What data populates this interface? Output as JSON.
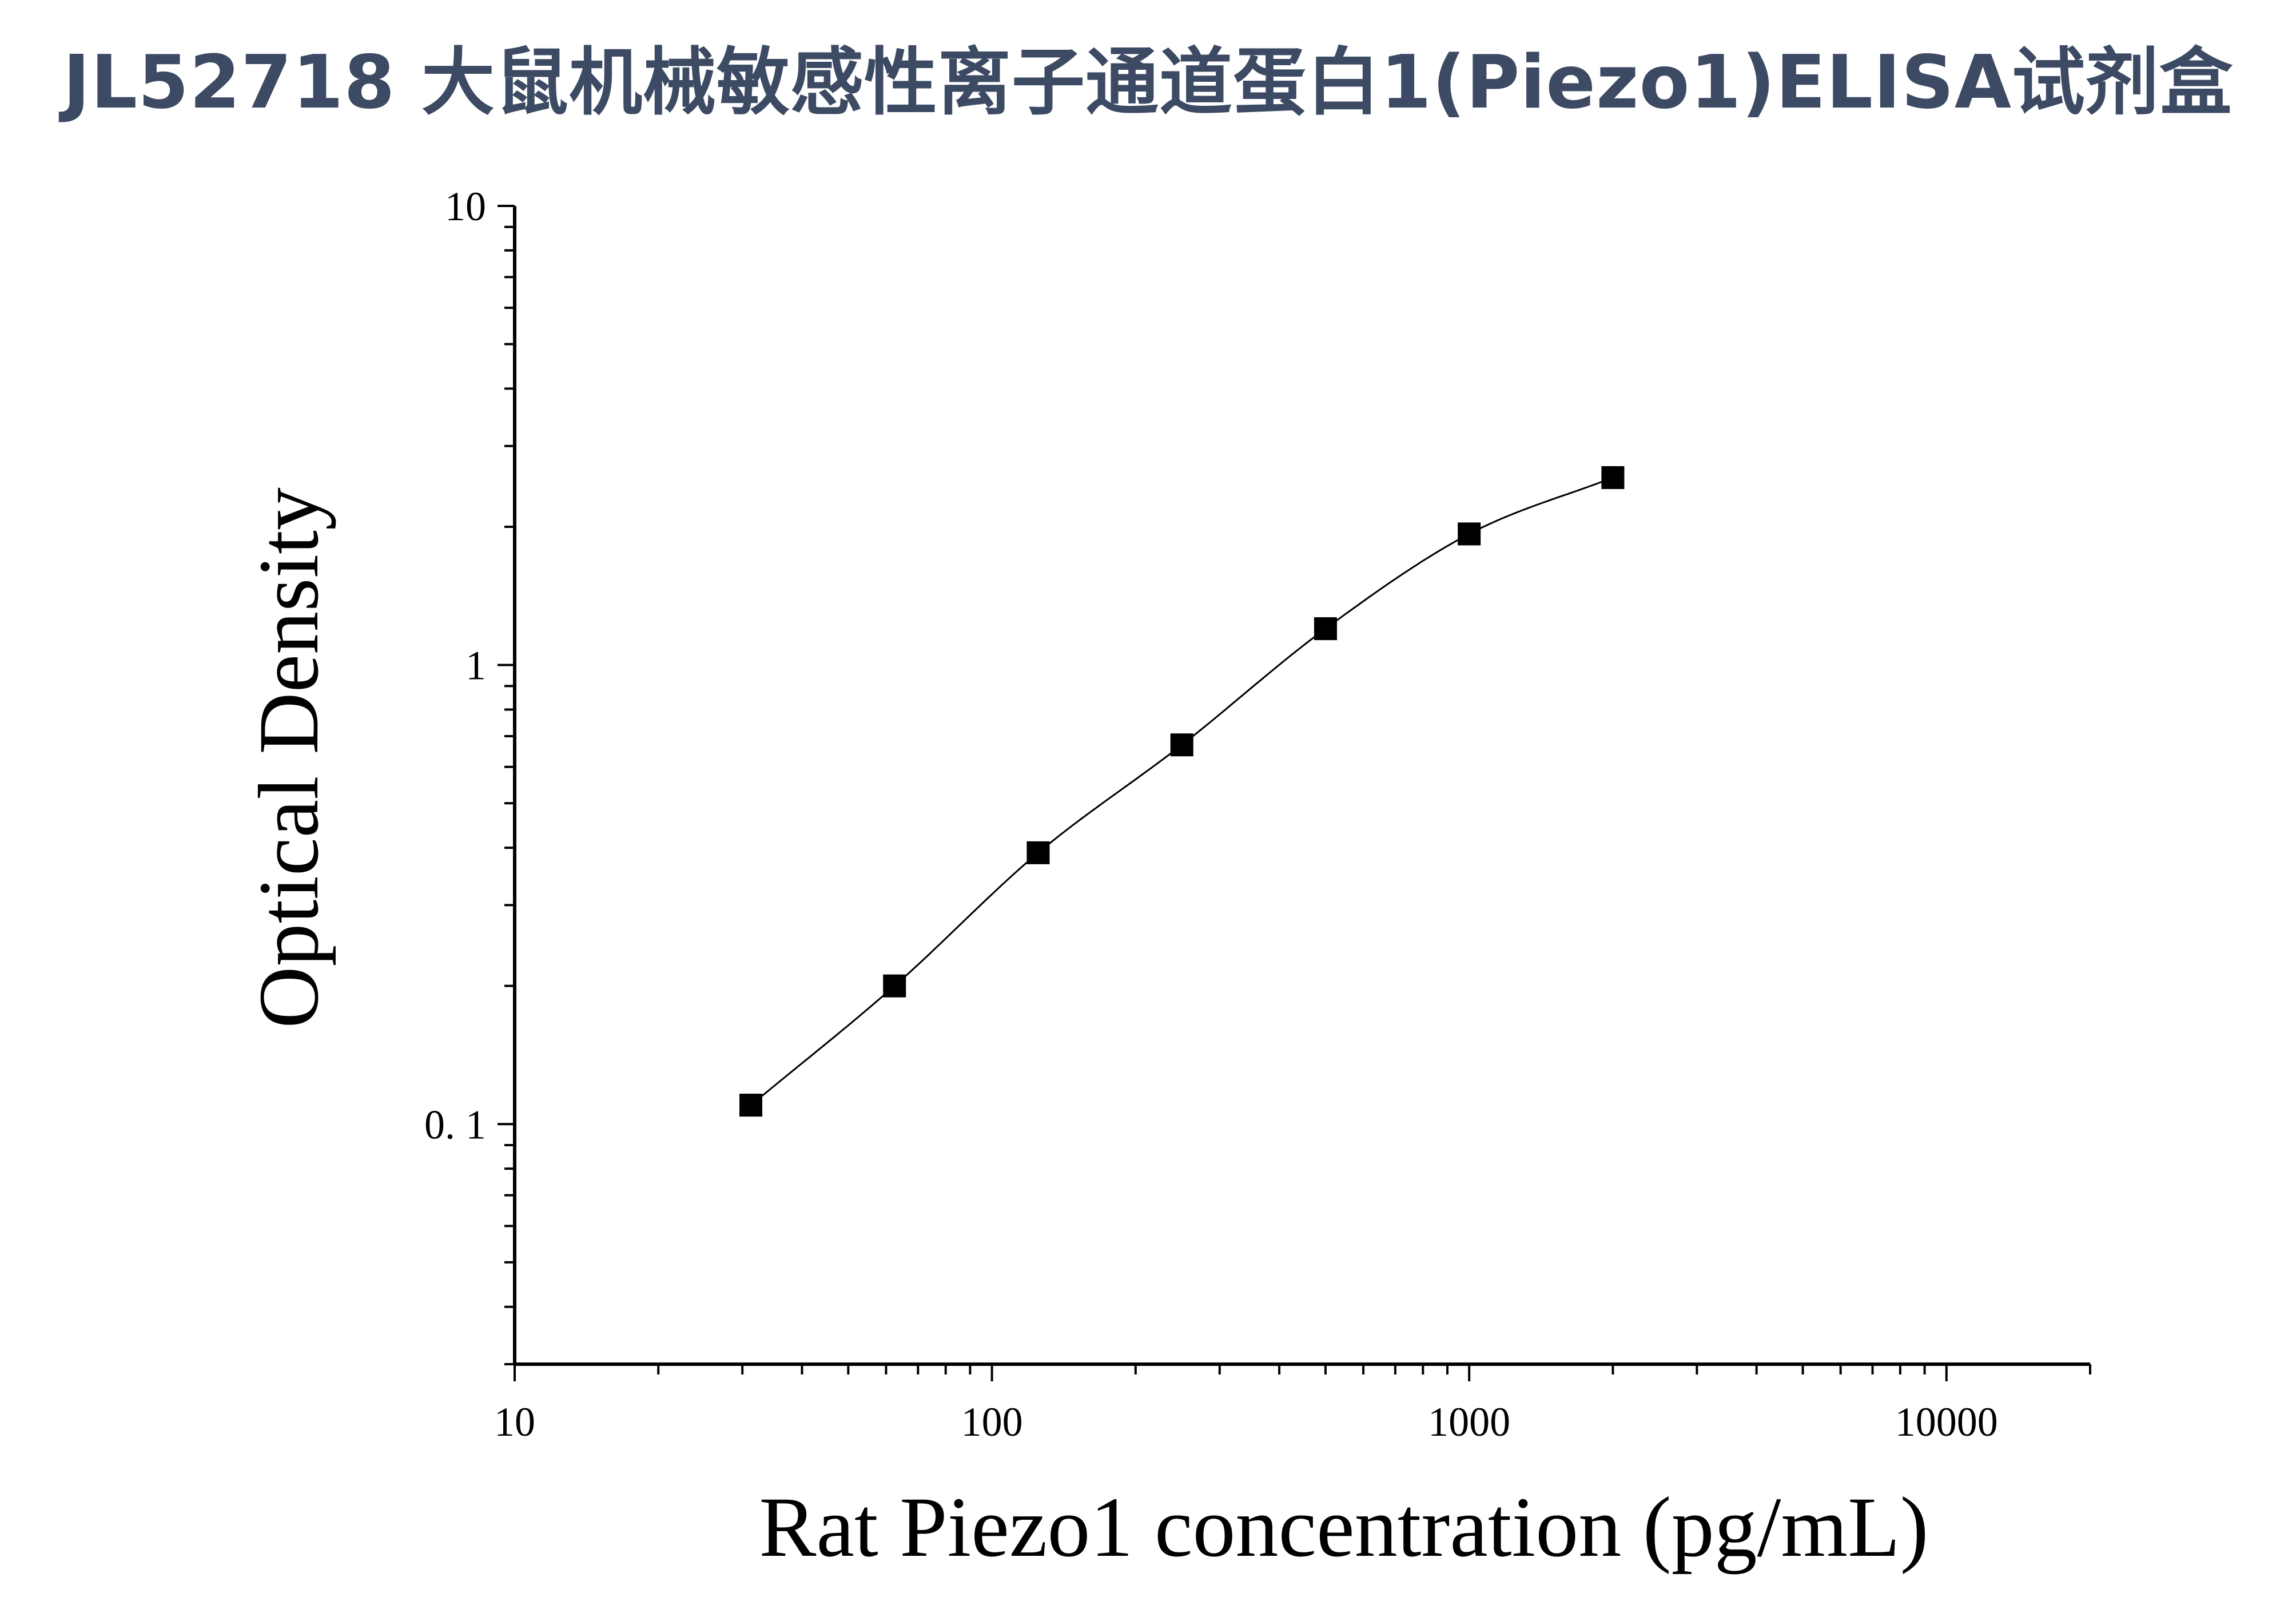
{
  "title": "JL52718 大鼠机械敏感性离子通道蛋白1(Piezo1)ELISA试剂盒",
  "colors": {
    "title": "#3d4a63",
    "axis": "#000000",
    "marker": "#000000",
    "curve": "#000000"
  },
  "chart_data": {
    "type": "scatter",
    "title": "",
    "xlabel": "Rat Piezo1 concentration (pg/mL)",
    "ylabel": "Optical Density",
    "x_scale": "log",
    "y_scale": "log",
    "xlim": [
      10,
      20000
    ],
    "ylim": [
      0.03,
      10
    ],
    "x_ticks": [
      "10",
      "100",
      "1000",
      "10000"
    ],
    "y_ticks": [
      "0. 1",
      "1",
      "10"
    ],
    "grid": false,
    "legend": "none",
    "series": [
      {
        "x": [
          31.25,
          62.5,
          125,
          250,
          500,
          1000,
          2000
        ],
        "y": [
          0.11,
          0.2,
          0.39,
          0.67,
          1.2,
          1.93,
          2.56
        ],
        "marker": "square",
        "fit": "curve"
      }
    ]
  }
}
